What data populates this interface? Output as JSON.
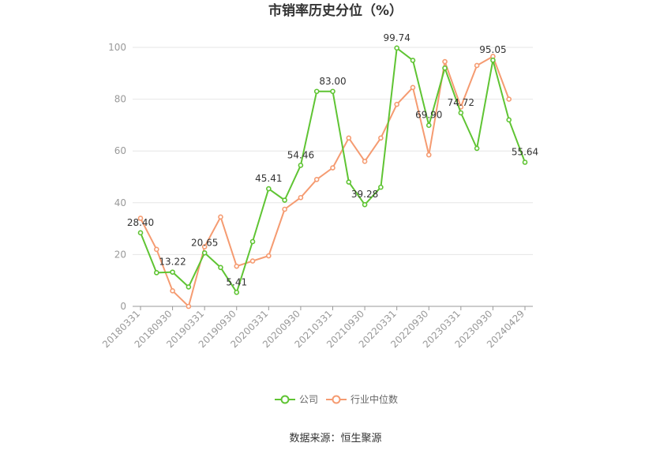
{
  "colors": {
    "company": "#5fc433",
    "industry": "#f59b71",
    "axis": "#999999",
    "grid": "#e6e6e6"
  },
  "legend": {
    "company": "公司",
    "industry": "行业中位数"
  },
  "source": "数据来源：恒生聚源",
  "chart_data": {
    "type": "line",
    "title": "市销率历史分位（%）",
    "ylim": [
      0,
      100
    ],
    "yticks": [
      "0",
      "20",
      "40",
      "60",
      "80",
      "100"
    ],
    "x": [
      "20180331",
      "20180630",
      "20180930",
      "20181231",
      "20190331",
      "20190630",
      "20190930",
      "20191231",
      "20200331",
      "20200630",
      "20200930",
      "20201231",
      "20210331",
      "20210630",
      "20210930",
      "20211231",
      "20220331",
      "20220630",
      "20220930",
      "20221231",
      "20230331",
      "20230630",
      "20230930",
      "20231231",
      "20240429"
    ],
    "xtick_labels": [
      "20180331",
      "20180930",
      "20190331",
      "20190930",
      "20200331",
      "20200930",
      "20210331",
      "20210930",
      "20220331",
      "20220930",
      "20230331",
      "20230930",
      "20240429"
    ],
    "series": [
      {
        "name": "公司",
        "values": [
          28.4,
          13.0,
          13.22,
          7.5,
          20.65,
          15.0,
          5.41,
          25.0,
          45.41,
          41.0,
          54.46,
          83.0,
          83.0,
          48.0,
          39.28,
          46.0,
          99.74,
          95.0,
          69.9,
          92.0,
          74.72,
          61.0,
          95.05,
          72.0,
          55.64
        ]
      },
      {
        "name": "行业中位数",
        "values": [
          34.0,
          22.0,
          6.0,
          0.0,
          23.0,
          34.5,
          15.5,
          17.5,
          19.5,
          37.5,
          42.0,
          49.0,
          53.5,
          65.0,
          56.0,
          65.0,
          78.0,
          84.5,
          58.5,
          94.5,
          77.0,
          93.0,
          96.5,
          80.0,
          null
        ]
      }
    ],
    "data_labels": [
      {
        "series": 0,
        "index": 0,
        "text": "28.40"
      },
      {
        "series": 0,
        "index": 2,
        "text": "13.22"
      },
      {
        "series": 0,
        "index": 4,
        "text": "20.65"
      },
      {
        "series": 0,
        "index": 6,
        "text": "5.41"
      },
      {
        "series": 0,
        "index": 8,
        "text": "45.41"
      },
      {
        "series": 0,
        "index": 10,
        "text": "54.46"
      },
      {
        "series": 0,
        "index": 12,
        "text": "83.00"
      },
      {
        "series": 0,
        "index": 14,
        "text": "39.28"
      },
      {
        "series": 0,
        "index": 16,
        "text": "99.74"
      },
      {
        "series": 0,
        "index": 18,
        "text": "69.90"
      },
      {
        "series": 0,
        "index": 20,
        "text": "74.72"
      },
      {
        "series": 0,
        "index": 22,
        "text": "95.05"
      },
      {
        "series": 0,
        "index": 24,
        "text": "55.64"
      }
    ],
    "grid": true,
    "legend_position": "bottom"
  }
}
